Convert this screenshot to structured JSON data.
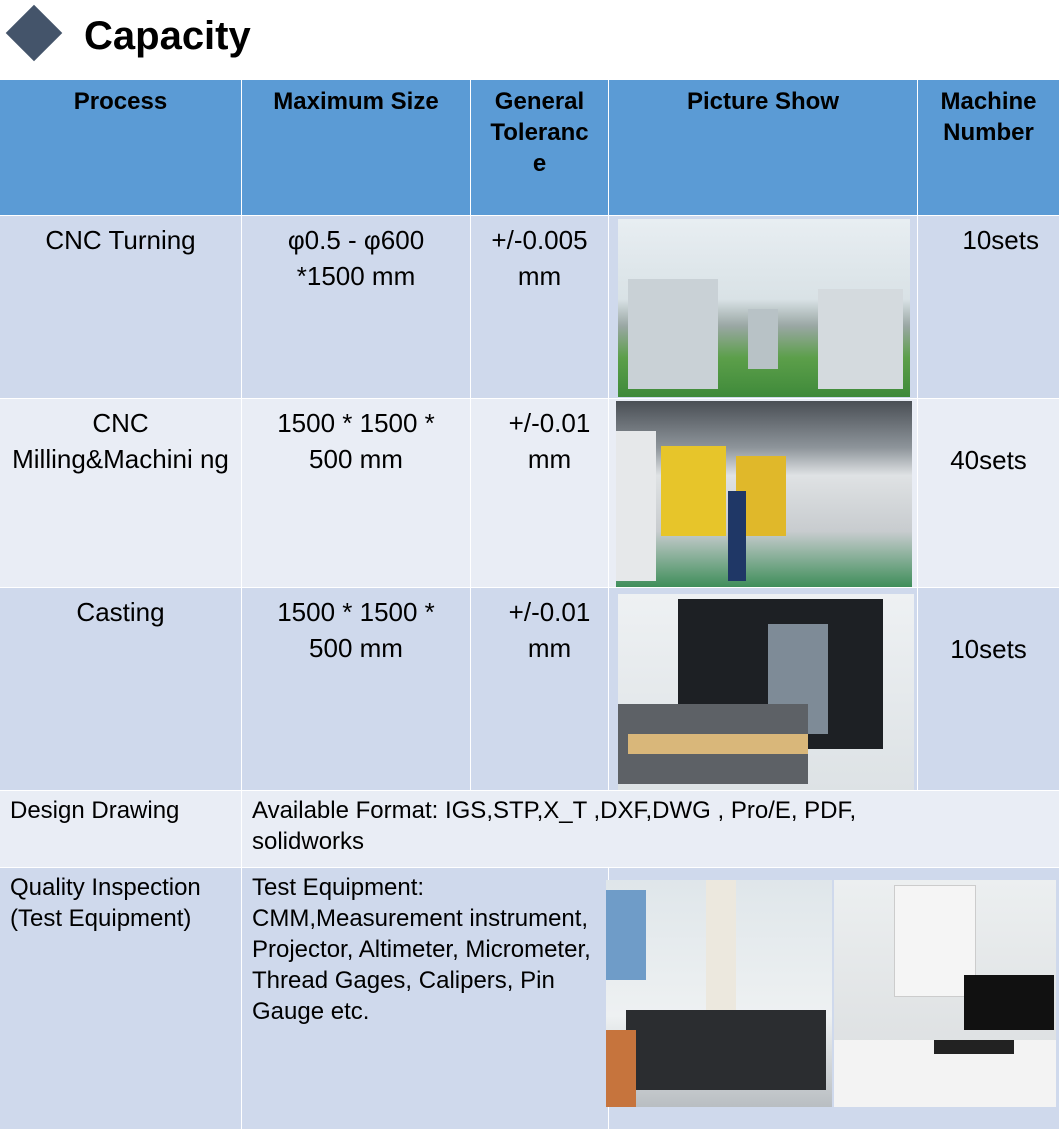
{
  "title": "Capacity",
  "icons": {
    "title_marker": "diamond-icon"
  },
  "colors": {
    "header": "#5b9bd5",
    "row_dark": "#cfd9ec",
    "row_light": "#e9edf5",
    "marker": "#44546a"
  },
  "table": {
    "headers": [
      "Process",
      "Maximum Size",
      "General Toleranc e",
      "Picture Show",
      "Machine Number"
    ],
    "rows": [
      {
        "process": "CNC Turning",
        "size": "φ0.5 - φ600 *1500 mm",
        "tolerance": "+/-0.005 mm",
        "machines": "10sets"
      },
      {
        "process": "CNC Milling&Machini ng",
        "size": "1500 * 1500 * 500 mm",
        "tolerance": "+/-0.01 mm",
        "machines": "40sets"
      },
      {
        "process": "Casting",
        "size": "1500 * 1500 * 500 mm",
        "tolerance": "+/-0.01 mm",
        "machines": "10sets"
      }
    ],
    "design": {
      "label": "Design Drawing",
      "value": "Available Format: IGS,STP,X_T ,DXF,DWG , Pro/E, PDF, solidworks"
    },
    "quality": {
      "label": "Quality Inspection (Test Equipment)",
      "value": "Test Equipment: CMM,Measurement instrument, Projector, Altimeter, Micrometer, Thread Gages, Calipers, Pin Gauge etc."
    }
  }
}
